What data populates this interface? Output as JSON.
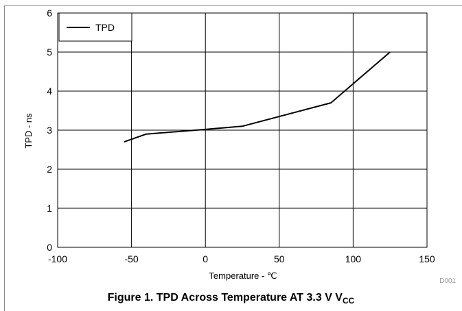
{
  "chart_data": {
    "type": "line",
    "title": "Figure 1. TPD Across Temperature AT 3.3 V V",
    "title_subscript": "CC",
    "xlabel": "Temperature - ℃",
    "ylabel": "TPD - ns",
    "xlim": [
      -100,
      150
    ],
    "ylim": [
      0,
      6
    ],
    "xticks": [
      -100,
      -50,
      0,
      50,
      100,
      150
    ],
    "yticks": [
      0,
      1,
      2,
      3,
      4,
      5,
      6
    ],
    "grid": true,
    "legend_position": "top-left",
    "series": [
      {
        "name": "TPD",
        "color": "#000000",
        "x": [
          -55,
          -40,
          0,
          25,
          85,
          125
        ],
        "y": [
          2.7,
          2.9,
          3.02,
          3.1,
          3.7,
          5.0
        ]
      }
    ],
    "figure_code": "D001"
  }
}
